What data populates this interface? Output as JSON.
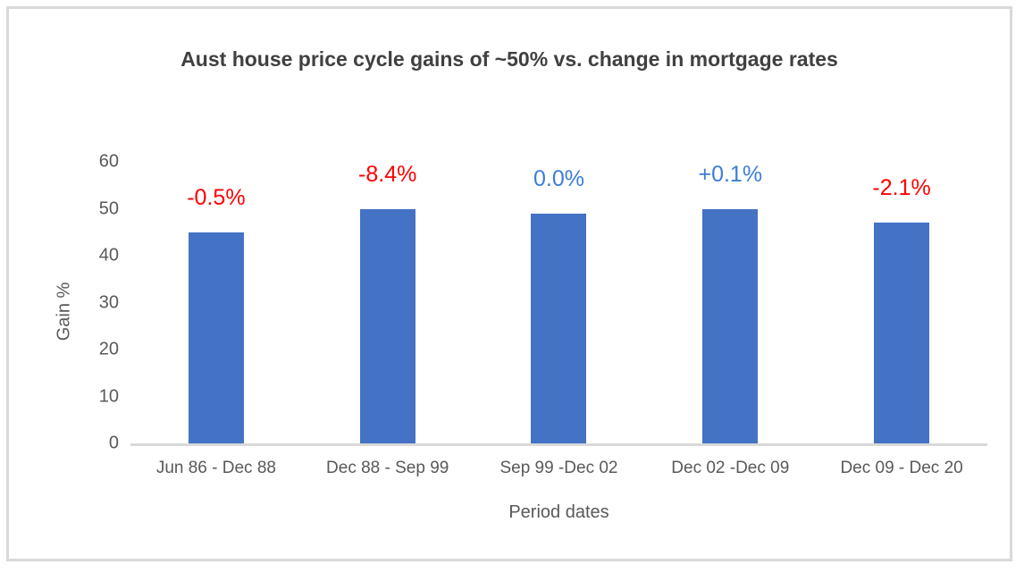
{
  "chart_data": {
    "type": "bar",
    "title": "Aust house price cycle gains of ~50% vs. change in mortgage rates",
    "xlabel": "Period dates",
    "ylabel": "Gain %",
    "ylim": [
      0,
      60
    ],
    "yticks": [
      0,
      10,
      20,
      30,
      40,
      50,
      60
    ],
    "grid": false,
    "legend": null,
    "bar_color": "#4472c4",
    "categories": [
      "Jun 86 - Dec 88",
      "Dec 88 - Sep 99",
      "Sep 99 -Dec 02",
      "Dec 02 -Dec 09",
      "Dec 09 - Dec 20"
    ],
    "values": [
      45,
      50,
      49,
      50,
      47
    ],
    "bar_labels": [
      {
        "text": "-0.5%",
        "color": "#ff0000"
      },
      {
        "text": "-8.4%",
        "color": "#ff0000"
      },
      {
        "text": "0.0%",
        "color": "#3b7dd8"
      },
      {
        "text": "+0.1%",
        "color": "#3b7dd8"
      },
      {
        "text": "-2.1%",
        "color": "#ff0000"
      }
    ],
    "colors": {
      "title_text": "#404040",
      "axis_text": "#595959",
      "axis_line": "#d9d9d9",
      "negative_label": "#ff0000",
      "positive_label": "#3b7dd8"
    }
  }
}
